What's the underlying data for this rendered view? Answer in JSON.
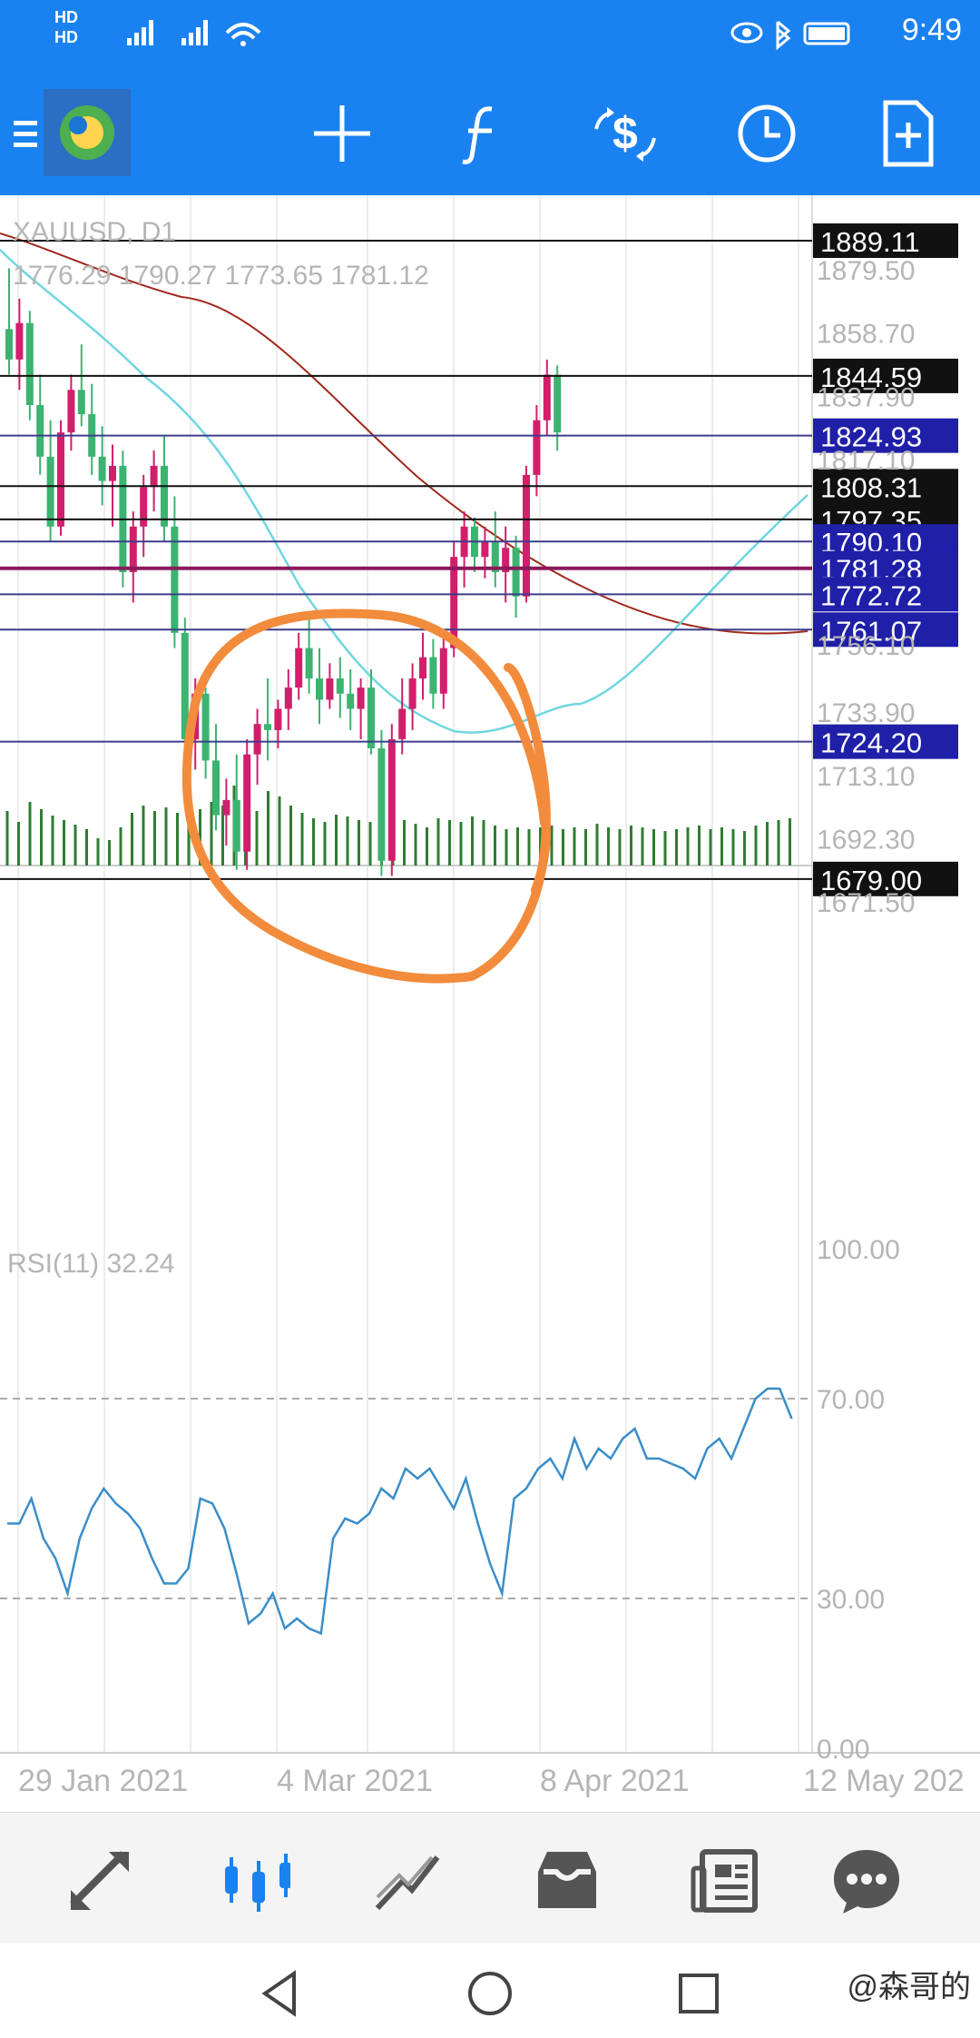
{
  "status_bar": {
    "time": "9:49",
    "net_labels": [
      "HD",
      "HD"
    ],
    "icons": [
      "signal-4g-icon",
      "signal-4g-icon",
      "wifi-icon",
      "eye-icon",
      "bluetooth-icon",
      "battery-icon"
    ]
  },
  "toolbar": {
    "icons": [
      "menu-icon",
      "app-logo-icon",
      "crosshair-icon",
      "indicator-icon",
      "trade-icon",
      "period-icon",
      "new-order-icon"
    ]
  },
  "chart": {
    "symbol": "XAUUSD, D1",
    "ohlc": "1776.29 1790.27 1773.65 1781.12",
    "price_ticks": [
      "1879.50",
      "1858.70",
      "1837.90",
      "1817.10",
      "1756.10",
      "1733.90",
      "1713.10",
      "1692.30",
      "1671.50"
    ],
    "levels": [
      {
        "value": "1889.11",
        "style": "black"
      },
      {
        "value": "1844.59",
        "style": "black"
      },
      {
        "value": "1824.93",
        "style": "navy"
      },
      {
        "value": "1808.31",
        "style": "black"
      },
      {
        "value": "1797.35",
        "style": "black"
      },
      {
        "value": "1790.10",
        "style": "navy"
      },
      {
        "value": "1781.28",
        "style": "navy"
      },
      {
        "value": "1772.72",
        "style": "navy"
      },
      {
        "value": "1761.07",
        "style": "navy"
      },
      {
        "value": "1724.20",
        "style": "navy"
      },
      {
        "value": "1679.00",
        "style": "black"
      }
    ],
    "dates": [
      "29 Jan 2021",
      "4 Mar 2021",
      "8 Apr 2021",
      "12 May 202"
    ],
    "rsi_label": "RSI(11) 32.24",
    "rsi_ticks": [
      "100.00",
      "70.00",
      "30.00",
      "0.00"
    ]
  },
  "bottom_nav": {
    "items": [
      "quotes-icon",
      "chart-icon",
      "trade-icon",
      "history-icon",
      "news-icon",
      "chat-icon"
    ]
  },
  "system_nav": {
    "buttons": [
      "back-icon",
      "home-icon",
      "recents-icon"
    ],
    "watermark": "@森哥的"
  },
  "colors": {
    "header_blue": "#1a82f0",
    "bull": "#3cb371",
    "bear": "#d11f6c",
    "ma_fast": "#6fd6e0",
    "ma_slow": "#a0291c",
    "rsi": "#3a8dc9",
    "annotation": "#f28c3c",
    "label_navy": "#1f1fa8",
    "level_magenta": "#8b1a5c"
  }
}
